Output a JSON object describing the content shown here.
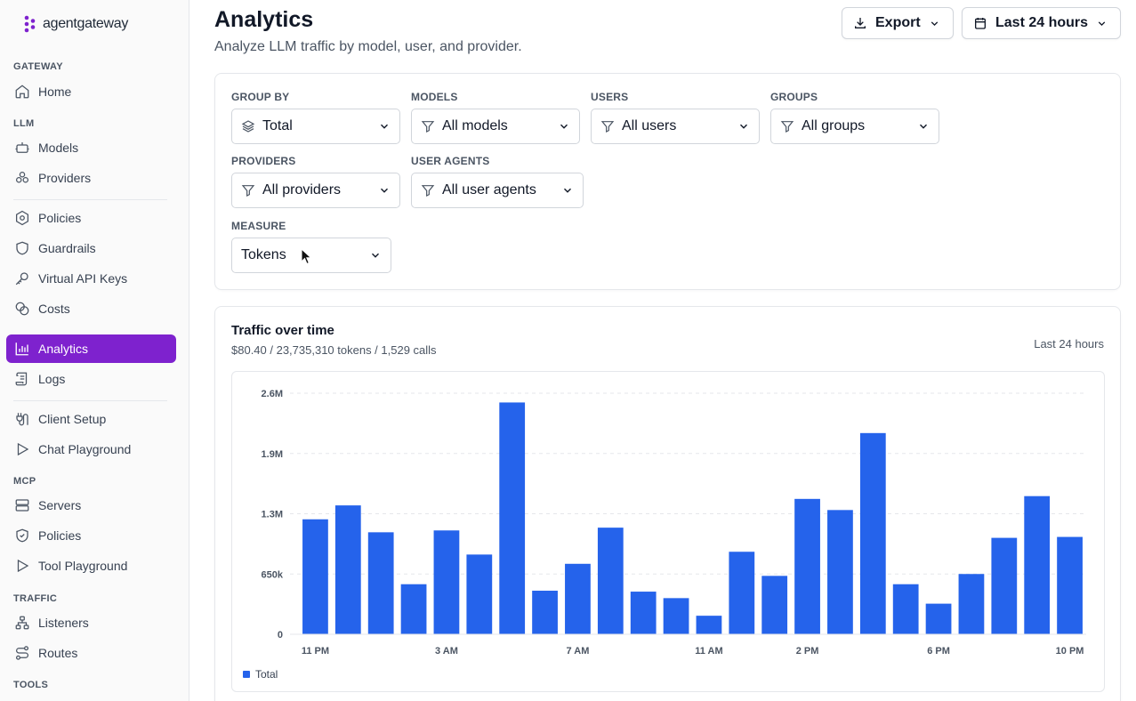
{
  "brand": {
    "name": "agentgateway"
  },
  "sidebar": {
    "gateway_label": "GATEWAY",
    "llm_label": "LLM",
    "mcp_label": "MCP",
    "traffic_label": "TRAFFIC",
    "tools_label": "TOOLS",
    "items": [
      {
        "label": "Home",
        "icon": "home-icon"
      },
      {
        "label": "Models",
        "icon": "robot-icon"
      },
      {
        "label": "Providers",
        "icon": "boxes-icon"
      },
      {
        "label": "Policies",
        "icon": "hexagon-icon"
      },
      {
        "label": "Guardrails",
        "icon": "shield-icon"
      },
      {
        "label": "Virtual API Keys",
        "icon": "key-icon"
      },
      {
        "label": "Costs",
        "icon": "coins-icon"
      },
      {
        "label": "Analytics",
        "icon": "bar-chart-icon"
      },
      {
        "label": "Logs",
        "icon": "scroll-icon"
      },
      {
        "label": "Client Setup",
        "icon": "plug-icon"
      },
      {
        "label": "Chat Playground",
        "icon": "play-icon"
      },
      {
        "label": "Servers",
        "icon": "server-icon"
      },
      {
        "label": "Policies",
        "icon": "shield-check-icon"
      },
      {
        "label": "Tool Playground",
        "icon": "play-icon"
      },
      {
        "label": "Listeners",
        "icon": "network-icon"
      },
      {
        "label": "Routes",
        "icon": "route-icon"
      }
    ],
    "active": "Analytics"
  },
  "header": {
    "title": "Analytics",
    "subtitle": "Analyze LLM traffic by model, user, and provider.",
    "export_label": "Export",
    "range_label": "Last 24 hours"
  },
  "filters": {
    "group_by": {
      "label": "GROUP BY",
      "value": "Total"
    },
    "models": {
      "label": "MODELS",
      "value": "All models"
    },
    "users": {
      "label": "USERS",
      "value": "All users"
    },
    "groups": {
      "label": "GROUPS",
      "value": "All groups"
    },
    "providers": {
      "label": "PROVIDERS",
      "value": "All providers"
    },
    "user_agents": {
      "label": "USER AGENTS",
      "value": "All user agents"
    },
    "measure": {
      "label": "MEASURE",
      "value": "Tokens"
    }
  },
  "traffic": {
    "title": "Traffic over time",
    "summary": "$80.40 / 23,735,310 tokens / 1,529 calls",
    "range": "Last 24 hours"
  },
  "colors": {
    "accent": "#7e22ce",
    "bar": "#2563eb"
  },
  "chart_data": {
    "type": "bar",
    "categories": [
      "11 PM",
      "12 AM",
      "1 AM",
      "2 AM",
      "3 AM",
      "4 AM",
      "5 AM",
      "6 AM",
      "7 AM",
      "8 AM",
      "9 AM",
      "10 AM",
      "11 AM",
      "12 PM",
      "1 PM",
      "2 PM",
      "3 PM",
      "4 PM",
      "5 PM",
      "6 PM",
      "7 PM",
      "8 PM",
      "9 PM",
      "10 PM"
    ],
    "tick_labels": [
      "11 PM",
      "",
      "",
      "",
      "3 AM",
      "",
      "",
      "",
      "7 AM",
      "",
      "",
      "",
      "11 AM",
      "",
      "",
      "2 PM",
      "",
      "",
      "",
      "6 PM",
      "",
      "",
      "",
      "10 PM"
    ],
    "series": [
      {
        "name": "Total",
        "values": [
          1240000,
          1390000,
          1100000,
          540000,
          1120000,
          860000,
          2500000,
          470000,
          760000,
          1150000,
          460000,
          390000,
          200000,
          890000,
          630000,
          1460000,
          1340000,
          2170000,
          540000,
          330000,
          650000,
          1040000,
          1490000,
          1050000
        ]
      }
    ],
    "y_ticks": [
      0,
      650000,
      1300000,
      1950000,
      2600000
    ],
    "y_tick_labels": [
      "0",
      "650k",
      "1.3M",
      "1.9M",
      "2.6M"
    ],
    "ylim": [
      0,
      2600000
    ],
    "grid": true,
    "legend": "bottom-left"
  }
}
